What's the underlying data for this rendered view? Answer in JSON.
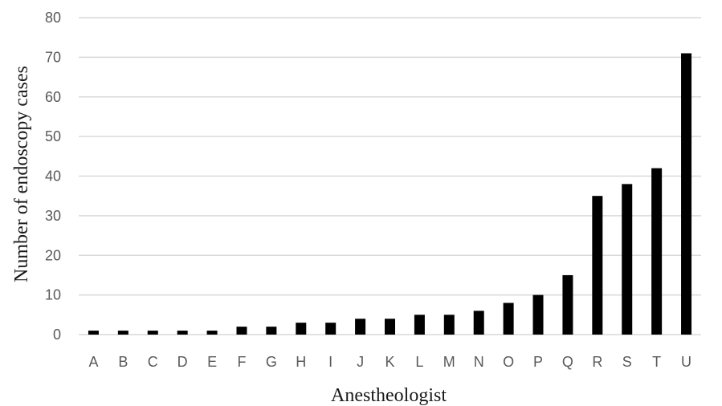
{
  "chart_data": {
    "type": "bar",
    "title": "",
    "xlabel": "Anestheologist",
    "ylabel": "Number of endoscopy cases",
    "categories": [
      "A",
      "B",
      "C",
      "D",
      "E",
      "F",
      "G",
      "H",
      "I",
      "J",
      "K",
      "L",
      "M",
      "N",
      "O",
      "P",
      "Q",
      "R",
      "S",
      "T",
      "U"
    ],
    "values": [
      1,
      1,
      1,
      1,
      1,
      2,
      2,
      3,
      3,
      4,
      4,
      5,
      5,
      6,
      8,
      10,
      15,
      35,
      38,
      42,
      71
    ],
    "ylim": [
      0,
      80
    ],
    "yticks": [
      0,
      10,
      20,
      30,
      40,
      50,
      60,
      70,
      80
    ],
    "grid": true,
    "legend": "none",
    "bar_color": "#000000",
    "grid_color": "#d9d9d9"
  }
}
